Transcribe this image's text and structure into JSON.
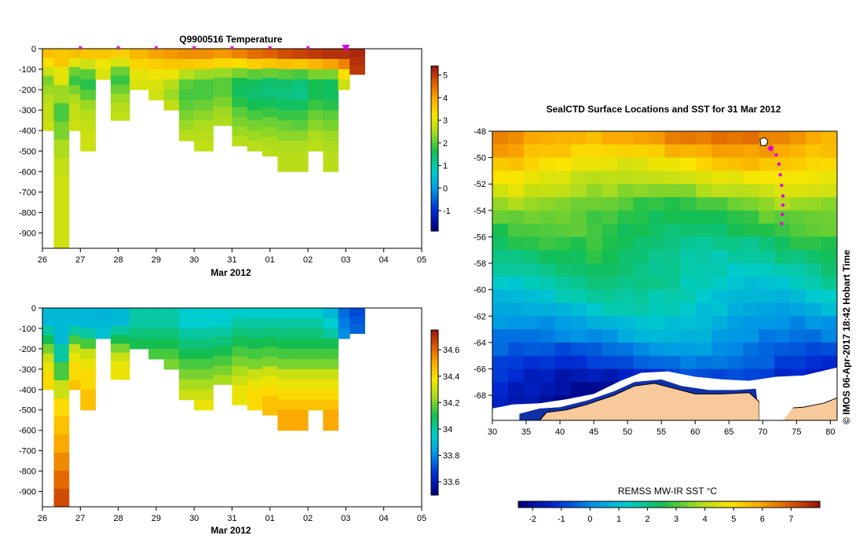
{
  "chart_data": [
    {
      "type": "heatmap",
      "id": "temperature-section",
      "title": "Q9900516  Temperature",
      "xlabel": "Mar 2012",
      "ylabel": "",
      "x_ticks": [
        "26",
        "27",
        "28",
        "29",
        "30",
        "31",
        "01",
        "02",
        "03",
        "04",
        "05"
      ],
      "xlim": [
        26,
        36
      ],
      "y_ticks": [
        0,
        -100,
        -200,
        -300,
        -400,
        -500,
        -600,
        -700,
        -800,
        -900
      ],
      "ylim": [
        -975,
        0
      ],
      "colorbar": {
        "range": [
          -1.9,
          5.4
        ],
        "ticks": [
          5,
          4,
          3,
          2,
          1,
          0,
          -1
        ]
      },
      "profile_markers": [
        27,
        28,
        29,
        30,
        31,
        32,
        33
      ],
      "current_marker": 34,
      "profiles": [
        {
          "x0": 26.0,
          "x1": 26.3,
          "maxdepth": 400,
          "values": [
            3.7,
            3.3,
            2.8,
            2.2,
            2.4,
            2.6,
            2.7,
            2.7,
            2.8
          ]
        },
        {
          "x0": 26.3,
          "x1": 26.7,
          "maxdepth": 975,
          "values": [
            3.6,
            3.0,
            2.4,
            1.9,
            2.2,
            2.5,
            2.7,
            2.8,
            2.8,
            2.8,
            2.8
          ]
        },
        {
          "x0": 26.7,
          "x1": 27.0,
          "maxdepth": 400,
          "values": [
            3.7,
            3.0,
            2.1,
            1.8,
            2.2,
            2.5,
            2.7,
            2.7,
            2.8
          ]
        },
        {
          "x0": 27.0,
          "x1": 27.4,
          "maxdepth": 500,
          "values": [
            3.6,
            2.8,
            2.0,
            1.7,
            2.0,
            2.4,
            2.6,
            2.7,
            2.8,
            2.8
          ]
        },
        {
          "x0": 27.4,
          "x1": 27.8,
          "maxdepth": 150,
          "values": [
            3.6,
            3.1,
            2.9
          ]
        },
        {
          "x0": 27.8,
          "x1": 28.3,
          "maxdepth": 350,
          "values": [
            3.5,
            2.9,
            2.1,
            1.8,
            2.1,
            2.4,
            2.6,
            2.7
          ]
        },
        {
          "x0": 28.3,
          "x1": 28.8,
          "maxdepth": 200,
          "values": [
            3.8,
            3.4,
            3.0,
            2.9
          ]
        },
        {
          "x0": 28.8,
          "x1": 29.2,
          "maxdepth": 250,
          "values": [
            4.0,
            3.5,
            3.1,
            2.9,
            2.8
          ]
        },
        {
          "x0": 29.2,
          "x1": 29.6,
          "maxdepth": 300,
          "values": [
            4.1,
            3.6,
            3.1,
            2.6,
            2.4,
            2.7
          ]
        },
        {
          "x0": 29.6,
          "x1": 30.0,
          "maxdepth": 450,
          "values": [
            4.2,
            3.6,
            2.6,
            2.0,
            1.9,
            2.0,
            2.2,
            2.4,
            2.6
          ]
        },
        {
          "x0": 30.0,
          "x1": 30.5,
          "maxdepth": 500,
          "values": [
            4.2,
            3.5,
            2.4,
            1.9,
            1.9,
            2.1,
            2.3,
            2.5,
            2.6,
            2.7
          ]
        },
        {
          "x0": 30.5,
          "x1": 31.0,
          "maxdepth": 375,
          "values": [
            4.1,
            3.4,
            2.4,
            2.0,
            2.0,
            2.2,
            2.4,
            2.5
          ]
        },
        {
          "x0": 31.0,
          "x1": 31.4,
          "maxdepth": 475,
          "values": [
            4.3,
            3.3,
            2.2,
            1.6,
            1.5,
            1.7,
            2.0,
            2.2,
            2.4,
            2.6
          ]
        },
        {
          "x0": 31.4,
          "x1": 31.8,
          "maxdepth": 500,
          "values": [
            4.5,
            3.5,
            2.0,
            1.5,
            1.4,
            1.6,
            1.9,
            2.2,
            2.4,
            2.6
          ]
        },
        {
          "x0": 31.8,
          "x1": 32.2,
          "maxdepth": 525,
          "values": [
            4.6,
            3.6,
            2.1,
            1.4,
            1.3,
            1.5,
            1.8,
            2.1,
            2.3,
            2.5,
            2.6
          ]
        },
        {
          "x0": 32.2,
          "x1": 32.6,
          "maxdepth": 600,
          "values": [
            4.8,
            3.7,
            2.0,
            1.4,
            1.3,
            1.5,
            1.8,
            2.1,
            2.3,
            2.5,
            2.6,
            2.6
          ]
        },
        {
          "x0": 32.6,
          "x1": 33.0,
          "maxdepth": 600,
          "values": [
            4.9,
            3.6,
            1.9,
            1.3,
            1.2,
            1.5,
            1.8,
            2.0,
            2.3,
            2.5,
            2.6,
            2.6
          ]
        },
        {
          "x0": 33.0,
          "x1": 33.4,
          "maxdepth": 500,
          "values": [
            5.0,
            3.8,
            2.2,
            1.6,
            1.6,
            1.8,
            2.1,
            2.3,
            2.5,
            2.6
          ]
        },
        {
          "x0": 33.4,
          "x1": 33.8,
          "maxdepth": 600,
          "values": [
            5.1,
            4.0,
            2.2,
            1.5,
            1.5,
            1.7,
            2.0,
            2.2,
            2.4,
            2.5,
            2.6,
            2.6
          ]
        },
        {
          "x0": 33.8,
          "x1": 34.1,
          "maxdepth": 200,
          "values": [
            5.1,
            4.3,
            3.3,
            2.8
          ]
        },
        {
          "x0": 34.1,
          "x1": 34.5,
          "maxdepth": 125,
          "values": [
            5.2,
            5.1,
            5.0
          ]
        }
      ]
    },
    {
      "type": "heatmap",
      "id": "salinity-section",
      "title": "",
      "xlabel": "Mar 2012",
      "ylabel": "",
      "x_ticks": [
        "26",
        "27",
        "28",
        "29",
        "30",
        "31",
        "01",
        "02",
        "03",
        "04",
        "05"
      ],
      "xlim": [
        26,
        36
      ],
      "y_ticks": [
        0,
        -100,
        -200,
        -300,
        -400,
        -500,
        -600,
        -700,
        -800,
        -900
      ],
      "ylim": [
        -975,
        0
      ],
      "colorbar": {
        "range": [
          33.5,
          34.75
        ],
        "ticks": [
          34.6,
          34.4,
          34.2,
          34,
          33.8,
          33.6
        ]
      },
      "profiles": [
        {
          "x0": 26.0,
          "x1": 26.3,
          "maxdepth": 400,
          "values": [
            33.9,
            33.9,
            34.0,
            34.1,
            34.2,
            34.3,
            34.35,
            34.4,
            34.4
          ]
        },
        {
          "x0": 26.3,
          "x1": 26.7,
          "maxdepth": 975,
          "values": [
            33.9,
            33.9,
            34.0,
            34.15,
            34.3,
            34.4,
            34.45,
            34.5,
            34.55,
            34.6,
            34.65
          ]
        },
        {
          "x0": 26.7,
          "x1": 27.0,
          "maxdepth": 400,
          "values": [
            33.9,
            33.9,
            34.0,
            34.15,
            34.3,
            34.35,
            34.4,
            34.4,
            34.45
          ]
        },
        {
          "x0": 27.0,
          "x1": 27.4,
          "maxdepth": 500,
          "values": [
            33.9,
            33.9,
            34.0,
            34.15,
            34.3,
            34.35,
            34.4,
            34.4,
            34.45,
            34.45
          ]
        },
        {
          "x0": 27.4,
          "x1": 27.8,
          "maxdepth": 150,
          "values": [
            33.88,
            33.9,
            33.92
          ]
        },
        {
          "x0": 27.8,
          "x1": 28.3,
          "maxdepth": 350,
          "values": [
            33.9,
            33.9,
            34.0,
            34.1,
            34.2,
            34.3,
            34.35,
            34.35
          ]
        },
        {
          "x0": 28.3,
          "x1": 28.8,
          "maxdepth": 200,
          "values": [
            34.0,
            34.0,
            34.05,
            34.1
          ]
        },
        {
          "x0": 28.8,
          "x1": 29.2,
          "maxdepth": 250,
          "values": [
            34.0,
            34.0,
            34.05,
            34.1,
            34.15
          ]
        },
        {
          "x0": 29.2,
          "x1": 29.6,
          "maxdepth": 300,
          "values": [
            34.0,
            34.0,
            34.05,
            34.1,
            34.15,
            34.2
          ]
        },
        {
          "x0": 29.6,
          "x1": 30.0,
          "maxdepth": 450,
          "values": [
            33.95,
            33.95,
            34.0,
            34.05,
            34.1,
            34.15,
            34.2,
            34.25,
            34.3
          ]
        },
        {
          "x0": 30.0,
          "x1": 30.5,
          "maxdepth": 500,
          "values": [
            33.95,
            33.95,
            34.0,
            34.05,
            34.1,
            34.15,
            34.2,
            34.25,
            34.3,
            34.35
          ]
        },
        {
          "x0": 30.5,
          "x1": 31.0,
          "maxdepth": 375,
          "values": [
            33.95,
            33.95,
            34.0,
            34.05,
            34.1,
            34.15,
            34.2,
            34.25
          ]
        },
        {
          "x0": 31.0,
          "x1": 31.4,
          "maxdepth": 475,
          "values": [
            33.95,
            34.0,
            34.05,
            34.1,
            34.15,
            34.2,
            34.25,
            34.3,
            34.35,
            34.35
          ]
        },
        {
          "x0": 31.4,
          "x1": 31.8,
          "maxdepth": 500,
          "values": [
            33.95,
            34.0,
            34.05,
            34.1,
            34.15,
            34.2,
            34.3,
            34.35,
            34.4,
            34.4
          ]
        },
        {
          "x0": 31.8,
          "x1": 32.2,
          "maxdepth": 525,
          "values": [
            33.95,
            34.0,
            34.05,
            34.1,
            34.15,
            34.2,
            34.3,
            34.35,
            34.4,
            34.45,
            34.45
          ]
        },
        {
          "x0": 32.2,
          "x1": 32.6,
          "maxdepth": 600,
          "values": [
            33.95,
            34.0,
            34.05,
            34.1,
            34.15,
            34.2,
            34.3,
            34.35,
            34.4,
            34.45,
            34.5,
            34.5
          ]
        },
        {
          "x0": 32.6,
          "x1": 33.0,
          "maxdepth": 600,
          "values": [
            33.95,
            34.0,
            34.05,
            34.1,
            34.15,
            34.2,
            34.3,
            34.35,
            34.4,
            34.45,
            34.5,
            34.5
          ]
        },
        {
          "x0": 33.0,
          "x1": 33.4,
          "maxdepth": 500,
          "values": [
            33.95,
            34.0,
            34.05,
            34.1,
            34.15,
            34.2,
            34.3,
            34.35,
            34.4,
            34.45
          ]
        },
        {
          "x0": 33.4,
          "x1": 33.8,
          "maxdepth": 600,
          "values": [
            33.9,
            33.95,
            34.0,
            34.1,
            34.15,
            34.2,
            34.3,
            34.35,
            34.4,
            34.45,
            34.5,
            34.5
          ]
        },
        {
          "x0": 33.8,
          "x1": 34.1,
          "maxdepth": 150,
          "values": [
            33.75,
            33.78,
            33.8
          ]
        },
        {
          "x0": 34.1,
          "x1": 34.5,
          "maxdepth": 125,
          "values": [
            33.7,
            33.72,
            33.74
          ]
        }
      ]
    },
    {
      "type": "heatmap",
      "id": "sst-map",
      "title": "SealCTD Surface Locations and SST for 31 Mar 2012",
      "xlabel": "",
      "ylabel": "",
      "x_ticks": [
        30,
        35,
        40,
        45,
        50,
        55,
        60,
        65,
        70,
        75,
        80
      ],
      "xlim": [
        30,
        81
      ],
      "y_ticks": [
        -48,
        -50,
        -52,
        -54,
        -56,
        -58,
        -60,
        -62,
        -64,
        -66,
        -68
      ],
      "ylim": [
        -69.9,
        -48
      ],
      "colorbar": {
        "label": "REMSS MW-IR SST °C",
        "range": [
          -2.5,
          8
        ],
        "ticks": [
          -2,
          -1,
          0,
          1,
          2,
          3,
          4,
          5,
          6,
          7
        ]
      },
      "sst_rows": [
        {
          "lat": -48.5,
          "sst": 6.2
        },
        {
          "lat": -49.5,
          "sst": 5.6
        },
        {
          "lat": -50.5,
          "sst": 5.0
        },
        {
          "lat": -51.5,
          "sst": 4.4
        },
        {
          "lat": -52.5,
          "sst": 3.9
        },
        {
          "lat": -53.5,
          "sst": 3.3
        },
        {
          "lat": -54.5,
          "sst": 2.9
        },
        {
          "lat": -55.5,
          "sst": 2.6
        },
        {
          "lat": -56.5,
          "sst": 2.3
        },
        {
          "lat": -57.5,
          "sst": 2.1
        },
        {
          "lat": -58.5,
          "sst": 1.9
        },
        {
          "lat": -59.5,
          "sst": 1.6
        },
        {
          "lat": -60.5,
          "sst": 1.3
        },
        {
          "lat": -61.5,
          "sst": 1.0
        },
        {
          "lat": -62.5,
          "sst": 0.6
        },
        {
          "lat": -63.5,
          "sst": 0.2
        },
        {
          "lat": -64.5,
          "sst": -0.2
        },
        {
          "lat": -65.5,
          "sst": -0.7
        },
        {
          "lat": -66.5,
          "sst": -1.2
        },
        {
          "lat": -67.5,
          "sst": -1.6
        },
        {
          "lat": -68.5,
          "sst": -1.8
        },
        {
          "lat": -69.5,
          "sst": -1.8
        }
      ],
      "track": [
        {
          "lon": 70.3,
          "lat": -49.0
        },
        {
          "lon": 71.2,
          "lat": -49.3
        },
        {
          "lon": 72.0,
          "lat": -49.8
        },
        {
          "lon": 72.4,
          "lat": -50.5
        },
        {
          "lon": 72.6,
          "lat": -51.3
        },
        {
          "lon": 72.8,
          "lat": -52.1
        },
        {
          "lon": 73.0,
          "lat": -52.9
        },
        {
          "lon": 73.0,
          "lat": -53.6
        },
        {
          "lon": 72.9,
          "lat": -54.3
        },
        {
          "lon": 72.8,
          "lat": -55.0
        }
      ],
      "track_latest": {
        "lon": 71.2,
        "lat": -49.3
      },
      "land_color": "#f8c99a",
      "ice_color": "#ffffff"
    }
  ],
  "credit": "© IMOS 06-Apr-2017 18:42 Hobart Time",
  "colors": {
    "marker": "#e000e0",
    "axis": "#000000"
  }
}
